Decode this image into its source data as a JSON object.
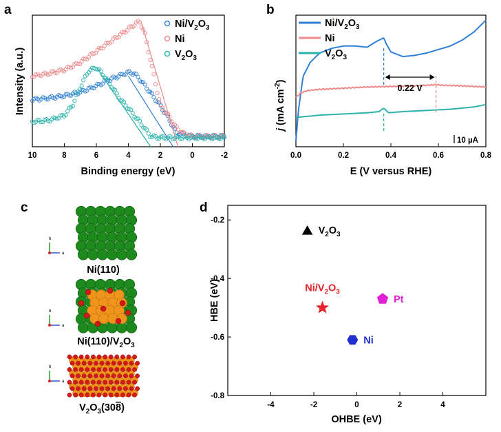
{
  "colors": {
    "ni_v2o3": "#2e7fd6",
    "ni": "#ee8a8a",
    "v2o3": "#2ab2ab",
    "black": "#000000",
    "red": "#e8212a",
    "pt": "#e11fd4",
    "ni_d": "#1f2fd0",
    "ni_atom": "#1e8a1e",
    "v_atom": "#f0941c",
    "o_atom": "#d4191b"
  },
  "panels": {
    "a": "a",
    "b": "b",
    "c": "c",
    "d": "d"
  },
  "chart_data": [
    {
      "panel": "a",
      "type": "scatter",
      "xlabel": "Binding energy (eV)",
      "ylabel": "Intensity (a.u.)",
      "xlim": [
        10,
        -2
      ],
      "x_reversed": true,
      "x_ticks": [
        "10",
        "8",
        "6",
        "4",
        "2",
        "0",
        "-2"
      ],
      "grid": false,
      "legend_position": "top-right",
      "series": [
        {
          "name_parts": [
            "Ni/V",
            "2",
            "O",
            "3"
          ],
          "color_key": "ni_v2o3",
          "x": [
            10,
            9,
            8,
            7,
            6,
            5,
            4,
            3.6,
            3,
            2,
            1.5,
            1,
            0,
            -1,
            -2
          ],
          "y": [
            0.35,
            0.36,
            0.38,
            0.41,
            0.46,
            0.52,
            0.57,
            0.56,
            0.47,
            0.3,
            0.2,
            0.08,
            0.05,
            0.05,
            0.05
          ],
          "fit_x": [
            4,
            1.2
          ],
          "fit_y": [
            0.54,
            0.0
          ]
        },
        {
          "name_parts": [
            "Ni"
          ],
          "color_key": "ni",
          "x": [
            10,
            9,
            8,
            7,
            6,
            5,
            4,
            3.5,
            3.3,
            3,
            2.5,
            2,
            1.5,
            1,
            0.5,
            0,
            -1,
            -2
          ],
          "y": [
            0.54,
            0.56,
            0.59,
            0.65,
            0.74,
            0.83,
            0.92,
            0.97,
            0.98,
            0.9,
            0.6,
            0.3,
            0.22,
            0.12,
            0.07,
            0.05,
            0.05,
            0.05
          ],
          "fit_x": [
            3.2,
            0.9
          ],
          "fit_y": [
            0.98,
            0.0
          ]
        },
        {
          "name_parts": [
            "V",
            "2",
            "O",
            "3"
          ],
          "color_key": "v2o3",
          "x": [
            10,
            9,
            8,
            7.5,
            7,
            6.5,
            6,
            5.5,
            5,
            4.5,
            4,
            3.5,
            3,
            2.6,
            2,
            1,
            0,
            -1,
            -2
          ],
          "y": [
            0.17,
            0.18,
            0.22,
            0.3,
            0.45,
            0.58,
            0.61,
            0.54,
            0.45,
            0.35,
            0.28,
            0.2,
            0.12,
            0.05,
            0.04,
            0.04,
            0.04,
            0.04,
            0.04
          ],
          "fit_x": [
            6,
            2.6
          ],
          "fit_y": [
            0.61,
            0.0
          ]
        }
      ]
    },
    {
      "panel": "b",
      "type": "line",
      "xlabel": "E (V versus RHE)",
      "ylabel_parts": [
        "j",
        " (mA cm",
        "-2",
        ")"
      ],
      "xlim": [
        0.0,
        0.8
      ],
      "x_ticks": [
        "0.0",
        "0.2",
        "0.4",
        "0.6",
        "0.8"
      ],
      "grid": false,
      "legend_position": "top-left",
      "scale_bar": "10 µA",
      "annotation": "0.22 V",
      "peak_a": 0.37,
      "peak_b": 0.59,
      "series": [
        {
          "name_parts": [
            "Ni/V",
            "2",
            "O",
            "3"
          ],
          "color_key": "ni_v2o3",
          "x": [
            0.0,
            0.01,
            0.03,
            0.06,
            0.1,
            0.15,
            0.2,
            0.25,
            0.3,
            0.34,
            0.36,
            0.37,
            0.38,
            0.4,
            0.45,
            0.5,
            0.55,
            0.6,
            0.65,
            0.7,
            0.75,
            0.8
          ],
          "y": [
            0.05,
            0.3,
            0.6,
            0.72,
            0.8,
            0.84,
            0.86,
            0.86,
            0.85,
            0.9,
            0.92,
            0.93,
            0.88,
            0.81,
            0.77,
            0.78,
            0.8,
            0.83,
            0.86,
            0.91,
            0.98,
            1.08
          ]
        },
        {
          "name_parts": [
            "Ni"
          ],
          "color_key": "ni",
          "x": [
            0.0,
            0.02,
            0.05,
            0.1,
            0.2,
            0.3,
            0.4,
            0.5,
            0.55,
            0.59,
            0.62,
            0.7,
            0.8
          ],
          "y": [
            0.42,
            0.46,
            0.48,
            0.49,
            0.5,
            0.51,
            0.515,
            0.52,
            0.525,
            0.53,
            0.525,
            0.52,
            0.51
          ]
        },
        {
          "name_parts": [
            "V",
            "2",
            "O",
            "3"
          ],
          "color_key": "v2o3",
          "x": [
            0.0,
            0.05,
            0.1,
            0.2,
            0.3,
            0.35,
            0.37,
            0.39,
            0.45,
            0.55,
            0.65,
            0.75,
            0.8
          ],
          "y": [
            0.25,
            0.26,
            0.27,
            0.28,
            0.29,
            0.3,
            0.33,
            0.29,
            0.3,
            0.31,
            0.32,
            0.34,
            0.36
          ]
        }
      ]
    },
    {
      "panel": "d",
      "type": "scatter",
      "xlabel": "OHBE (eV)",
      "ylabel": "HBE (eV)",
      "xlim": [
        -6,
        6
      ],
      "ylim": [
        -0.8,
        -0.15
      ],
      "x_ticks": [
        -4,
        -2,
        0,
        2,
        4
      ],
      "y_ticks": [
        -0.2,
        -0.4,
        -0.6,
        -0.8
      ],
      "grid": false,
      "points": [
        {
          "label_parts": [
            "V",
            "2",
            "O",
            "3"
          ],
          "x": -2.3,
          "y": -0.235,
          "marker": "triangle",
          "color_key": "black",
          "label_side": "right"
        },
        {
          "label_parts": [
            "Ni/V",
            "2",
            "O",
            "3"
          ],
          "x": -1.6,
          "y": -0.5,
          "marker": "star",
          "color_key": "red",
          "label_side": "above"
        },
        {
          "label_parts": [
            "Pt"
          ],
          "x": 1.2,
          "y": -0.47,
          "marker": "pentagon",
          "color_key": "pt",
          "label_side": "right"
        },
        {
          "label_parts": [
            "Ni"
          ],
          "x": -0.2,
          "y": -0.61,
          "marker": "hexagon",
          "color_key": "ni_d",
          "label_side": "right"
        }
      ]
    }
  ],
  "panel_c": {
    "structures": [
      {
        "label_parts": [
          "Ni(110)"
        ]
      },
      {
        "label_parts": [
          "Ni(110)/V",
          "2",
          "O",
          "3"
        ]
      },
      {
        "label_parts": [
          "V",
          "2",
          "O",
          "3",
          "(30",
          "8",
          ")"
        ]
      }
    ],
    "axis_labels": {
      "a": "a",
      "b": "b",
      "c": "c"
    }
  }
}
